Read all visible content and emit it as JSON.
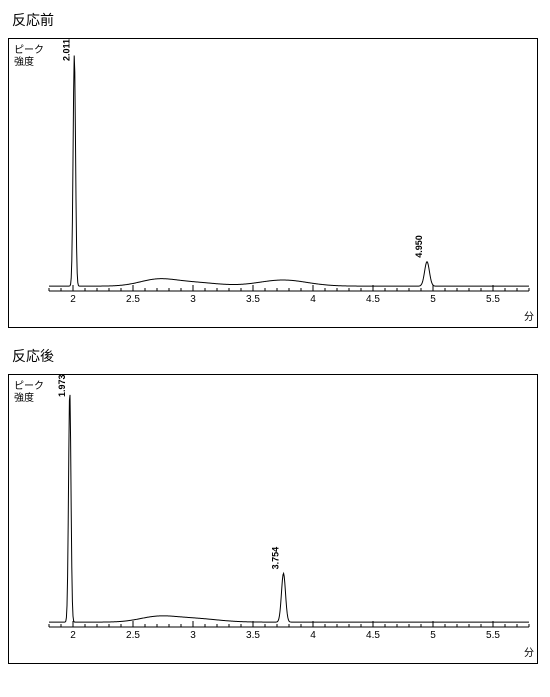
{
  "charts": [
    {
      "title": "反応前",
      "y_label_line1": "ピーク",
      "y_label_line2": "強度",
      "x_unit": "分",
      "type": "chromatogram",
      "xlim": [
        1.8,
        5.8
      ],
      "x_ticks": [
        2,
        2.5,
        3,
        3.5,
        4,
        4.5,
        5,
        5.5
      ],
      "x_minor_step": 0.1,
      "ylim": [
        0,
        100
      ],
      "colors": {
        "line": "#000000",
        "axis": "#000000",
        "background": "#ffffff"
      },
      "line_width": 1,
      "baseline_y": 2,
      "peaks": [
        {
          "x": 2.011,
          "height": 95,
          "width": 0.03,
          "label": "2.011"
        },
        {
          "x": 4.95,
          "height": 10,
          "width": 0.06,
          "label": "4.950"
        }
      ],
      "bumps": [
        {
          "x": 2.7,
          "height": 2.5,
          "width": 0.15
        },
        {
          "x": 3.0,
          "height": 1.5,
          "width": 0.2
        },
        {
          "x": 3.75,
          "height": 2.5,
          "width": 0.2
        }
      ]
    },
    {
      "title": "反応後",
      "y_label_line1": "ピーク",
      "y_label_line2": "強度",
      "x_unit": "分",
      "type": "chromatogram",
      "xlim": [
        1.8,
        5.8
      ],
      "x_ticks": [
        2,
        2.5,
        3,
        3.5,
        4,
        4.5,
        5,
        5.5
      ],
      "x_minor_step": 0.1,
      "ylim": [
        0,
        100
      ],
      "colors": {
        "line": "#000000",
        "axis": "#000000",
        "background": "#ffffff"
      },
      "line_width": 1,
      "baseline_y": 2,
      "peaks": [
        {
          "x": 1.973,
          "height": 95,
          "width": 0.03,
          "label": "1.973"
        },
        {
          "x": 3.754,
          "height": 20,
          "width": 0.05,
          "label": "3.754"
        }
      ],
      "bumps": [
        {
          "x": 2.7,
          "height": 2.0,
          "width": 0.15
        },
        {
          "x": 3.0,
          "height": 1.5,
          "width": 0.2
        }
      ]
    }
  ]
}
